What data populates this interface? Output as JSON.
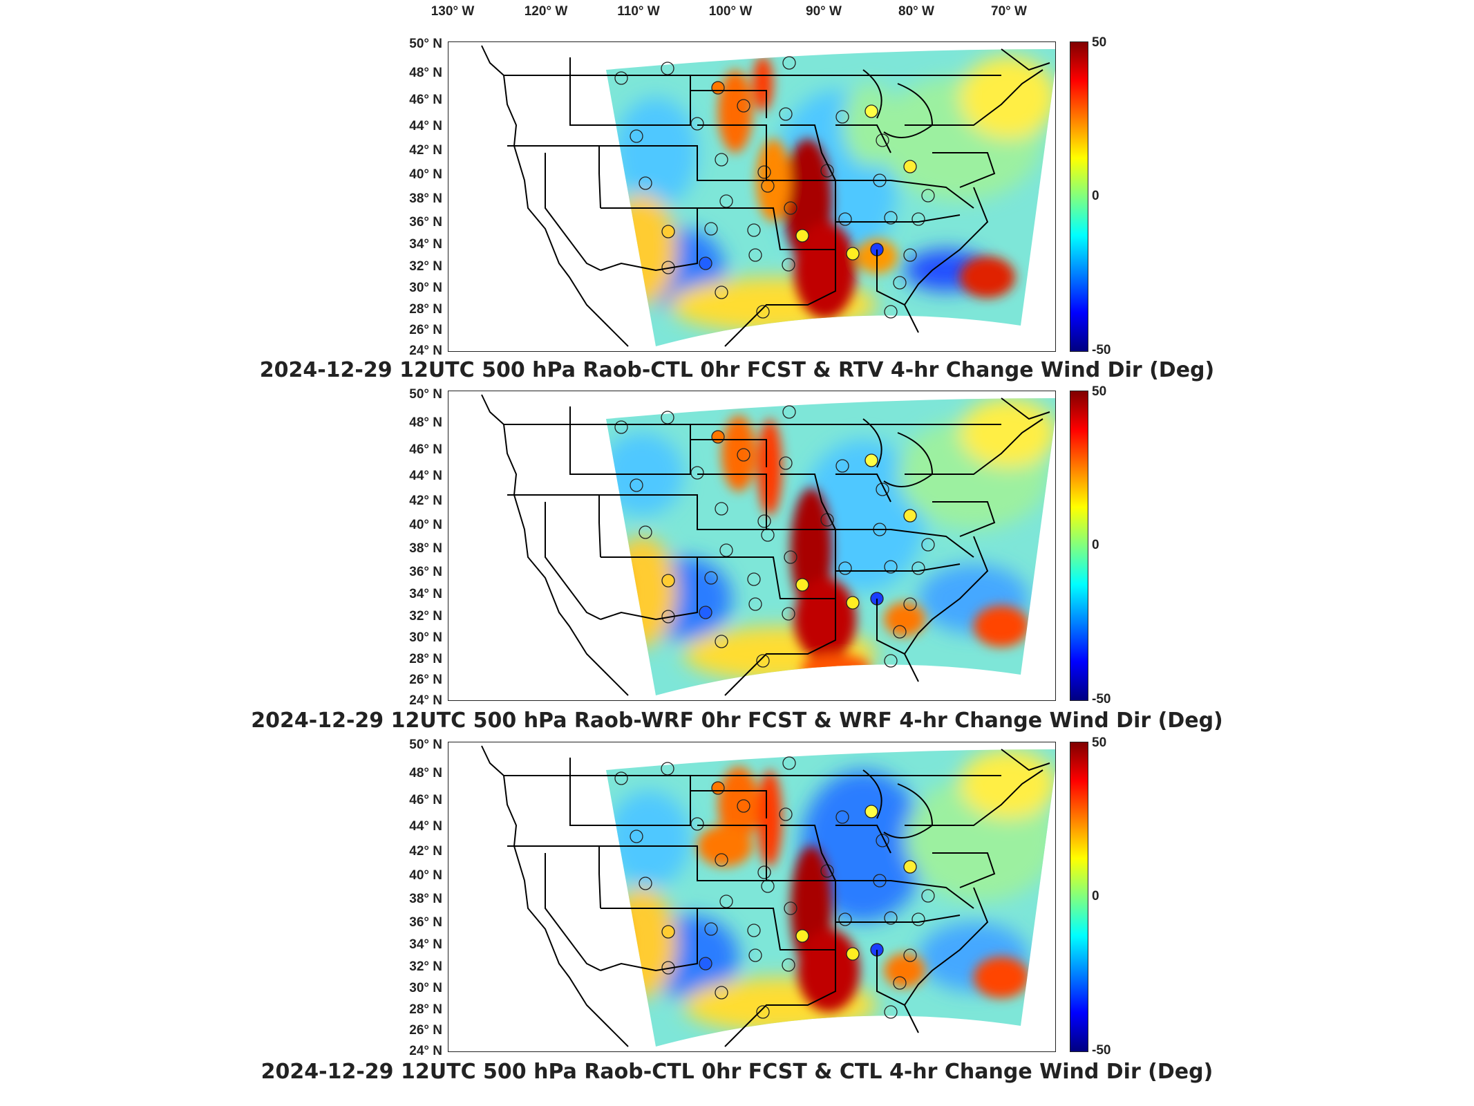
{
  "longitude_labels": [
    "130° W",
    "120° W",
    "110° W",
    "100° W",
    "90° W",
    "80° W",
    "70° W"
  ],
  "latitude_labels": [
    "50° N",
    "48° N",
    "46° N",
    "44° N",
    "42° N",
    "40° N",
    "38° N",
    "36° N",
    "34° N",
    "32° N",
    "30° N",
    "28° N",
    "26° N",
    "24° N"
  ],
  "colorbar": {
    "max": "50",
    "mid": "0",
    "min": "-50",
    "colormap": "jet"
  },
  "panels": [
    {
      "title": "2024-12-29 12UTC 500 hPa Raob-CTL 0hr FCST & RTV 4-hr Change Wind Dir (Deg)"
    },
    {
      "title": "2024-12-29 12UTC 500 hPa Raob-WRF 0hr FCST & WRF 4-hr Change Wind Dir (Deg)"
    },
    {
      "title": "2024-12-29 12UTC 500 hPa Raob-CTL 0hr FCST & CTL 4-hr Change Wind Dir (Deg)"
    }
  ],
  "colors": {
    "field_base": "#7ee6d8",
    "outline": "#000000"
  }
}
